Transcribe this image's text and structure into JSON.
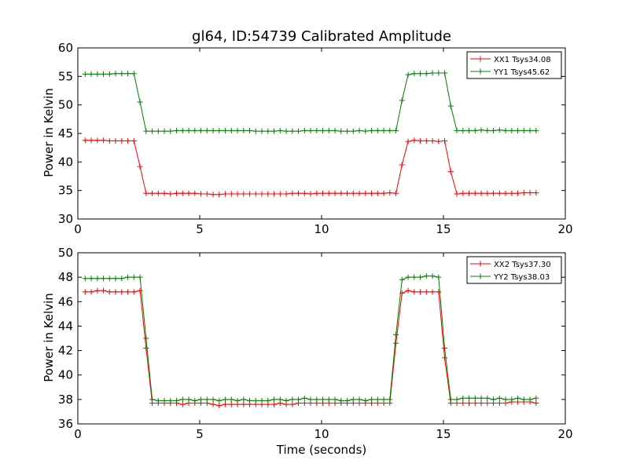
{
  "chart_data": [
    {
      "type": "line",
      "title": "gl64, ID:54739 Calibrated Amplitude",
      "xlabel": "",
      "ylabel": "Power in Kelvin",
      "xlim": [
        0,
        20
      ],
      "ylim": [
        30,
        60
      ],
      "xticks": [
        0,
        5,
        10,
        15,
        20
      ],
      "yticks": [
        30,
        35,
        40,
        45,
        50,
        55,
        60
      ],
      "xtick_labels": [
        "0",
        "5",
        "10",
        "15",
        "20"
      ],
      "ytick_labels": [
        "30",
        "35",
        "40",
        "45",
        "50",
        "55",
        "60"
      ],
      "grid": false,
      "legend": "top-right",
      "marker": "+",
      "x": [
        0.3,
        0.55,
        0.8,
        1.05,
        1.3,
        1.55,
        1.8,
        2.05,
        2.3,
        2.55,
        2.8,
        3.05,
        3.3,
        3.55,
        3.8,
        4.05,
        4.3,
        4.55,
        4.8,
        5.05,
        5.3,
        5.55,
        5.8,
        6.05,
        6.3,
        6.55,
        6.8,
        7.05,
        7.3,
        7.55,
        7.8,
        8.05,
        8.3,
        8.55,
        8.8,
        9.05,
        9.3,
        9.55,
        9.8,
        10.05,
        10.3,
        10.55,
        10.8,
        11.05,
        11.3,
        11.55,
        11.8,
        12.05,
        12.3,
        12.55,
        12.8,
        13.05,
        13.3,
        13.55,
        13.8,
        14.05,
        14.3,
        14.55,
        14.8,
        15.05,
        15.3,
        15.55,
        15.8,
        16.05,
        16.3,
        16.55,
        16.8,
        17.05,
        17.3,
        17.55,
        17.8,
        18.05,
        18.3,
        18.55,
        18.8
      ],
      "series": [
        {
          "name": "XX1 Tsys34.08",
          "color": "#ff0000",
          "values": [
            43.8,
            43.8,
            43.8,
            43.8,
            43.7,
            43.7,
            43.7,
            43.7,
            43.7,
            39.2,
            34.5,
            34.5,
            34.5,
            34.5,
            34.4,
            34.5,
            34.5,
            34.5,
            34.5,
            34.4,
            34.4,
            34.3,
            34.3,
            34.4,
            34.4,
            34.4,
            34.4,
            34.4,
            34.4,
            34.4,
            34.4,
            34.4,
            34.4,
            34.4,
            34.5,
            34.5,
            34.5,
            34.4,
            34.5,
            34.5,
            34.5,
            34.5,
            34.5,
            34.5,
            34.5,
            34.5,
            34.5,
            34.5,
            34.5,
            34.5,
            34.6,
            34.5,
            39.5,
            43.6,
            43.8,
            43.7,
            43.7,
            43.7,
            43.6,
            43.7,
            38.3,
            34.4,
            34.5,
            34.5,
            34.5,
            34.5,
            34.5,
            34.5,
            34.5,
            34.5,
            34.5,
            34.5,
            34.6,
            34.6,
            34.6
          ]
        },
        {
          "name": "YY1 Tsys45.62",
          "color": "#008000",
          "values": [
            55.4,
            55.4,
            55.4,
            55.4,
            55.4,
            55.5,
            55.5,
            55.5,
            55.5,
            50.5,
            45.4,
            45.4,
            45.4,
            45.4,
            45.4,
            45.5,
            45.5,
            45.5,
            45.5,
            45.5,
            45.5,
            45.5,
            45.5,
            45.5,
            45.5,
            45.5,
            45.5,
            45.5,
            45.4,
            45.4,
            45.4,
            45.4,
            45.5,
            45.4,
            45.4,
            45.4,
            45.5,
            45.5,
            45.5,
            45.5,
            45.5,
            45.5,
            45.4,
            45.4,
            45.4,
            45.5,
            45.4,
            45.5,
            45.5,
            45.5,
            45.5,
            45.5,
            50.8,
            55.3,
            55.5,
            55.5,
            55.5,
            55.6,
            55.6,
            55.6,
            49.8,
            45.5,
            45.5,
            45.5,
            45.5,
            45.6,
            45.5,
            45.5,
            45.6,
            45.5,
            45.5,
            45.5,
            45.5,
            45.5,
            45.5
          ]
        }
      ]
    },
    {
      "type": "line",
      "title": "",
      "xlabel": "Time (seconds)",
      "ylabel": "Power in Kelvin",
      "xlim": [
        0,
        20
      ],
      "ylim": [
        36,
        50
      ],
      "xticks": [
        0,
        5,
        10,
        15,
        20
      ],
      "yticks": [
        36,
        38,
        40,
        42,
        44,
        46,
        48,
        50
      ],
      "xtick_labels": [
        "0",
        "5",
        "10",
        "15",
        "20"
      ],
      "ytick_labels": [
        "36",
        "38",
        "40",
        "42",
        "44",
        "46",
        "48",
        "50"
      ],
      "grid": false,
      "legend": "top-right",
      "marker": "+",
      "x": [
        0.3,
        0.55,
        0.8,
        1.05,
        1.3,
        1.55,
        1.8,
        2.05,
        2.3,
        2.55,
        2.8,
        3.05,
        3.3,
        3.55,
        3.8,
        4.05,
        4.3,
        4.55,
        4.8,
        5.05,
        5.3,
        5.55,
        5.8,
        6.05,
        6.3,
        6.55,
        6.8,
        7.05,
        7.3,
        7.55,
        7.8,
        8.05,
        8.3,
        8.55,
        8.8,
        9.05,
        9.3,
        9.55,
        9.8,
        10.05,
        10.3,
        10.55,
        10.8,
        11.05,
        11.3,
        11.55,
        11.8,
        12.05,
        12.3,
        12.55,
        12.8,
        13.05,
        13.3,
        13.55,
        13.8,
        14.05,
        14.3,
        14.55,
        14.8,
        15.05,
        15.3,
        15.55,
        15.8,
        16.05,
        16.3,
        16.55,
        16.8,
        17.05,
        17.3,
        17.55,
        17.8,
        18.05,
        18.3,
        18.55,
        18.8
      ],
      "series": [
        {
          "name": "XX2 Tsys37.30",
          "color": "#ff0000",
          "values": [
            46.8,
            46.8,
            46.9,
            46.9,
            46.8,
            46.8,
            46.8,
            46.8,
            46.8,
            46.9,
            42.2,
            37.7,
            37.7,
            37.7,
            37.7,
            37.7,
            37.6,
            37.7,
            37.7,
            37.7,
            37.7,
            37.6,
            37.5,
            37.6,
            37.6,
            37.6,
            37.6,
            37.6,
            37.6,
            37.6,
            37.6,
            37.6,
            37.7,
            37.6,
            37.6,
            37.7,
            37.7,
            37.7,
            37.7,
            37.7,
            37.7,
            37.7,
            37.7,
            37.7,
            37.7,
            37.7,
            37.7,
            37.7,
            37.7,
            37.7,
            37.7,
            42.6,
            46.7,
            46.9,
            46.8,
            46.8,
            46.8,
            46.8,
            46.8,
            41.4,
            37.7,
            37.7,
            37.7,
            37.7,
            37.7,
            37.7,
            37.7,
            37.7,
            37.7,
            37.7,
            37.8,
            37.8,
            37.8,
            37.8,
            37.7
          ]
        },
        {
          "name": "YY2 Tsys38.03",
          "color": "#008000",
          "values": [
            47.9,
            47.9,
            47.9,
            47.9,
            47.9,
            47.9,
            47.9,
            48.0,
            48.0,
            48.0,
            43.0,
            38.0,
            37.9,
            37.9,
            37.9,
            37.9,
            38.0,
            38.0,
            37.9,
            38.0,
            38.0,
            38.0,
            37.9,
            38.0,
            38.0,
            37.9,
            38.0,
            37.9,
            37.9,
            37.9,
            37.9,
            38.0,
            38.0,
            37.9,
            38.0,
            38.0,
            38.1,
            38.0,
            38.0,
            38.0,
            38.0,
            38.0,
            37.9,
            37.9,
            38.0,
            38.0,
            37.9,
            38.0,
            38.0,
            38.0,
            38.0,
            43.3,
            47.8,
            48.0,
            48.0,
            48.0,
            48.1,
            48.1,
            48.0,
            42.2,
            38.0,
            38.0,
            38.1,
            38.1,
            38.1,
            38.1,
            38.1,
            38.0,
            38.1,
            38.0,
            38.0,
            38.1,
            38.0,
            38.0,
            38.1
          ]
        }
      ]
    }
  ]
}
